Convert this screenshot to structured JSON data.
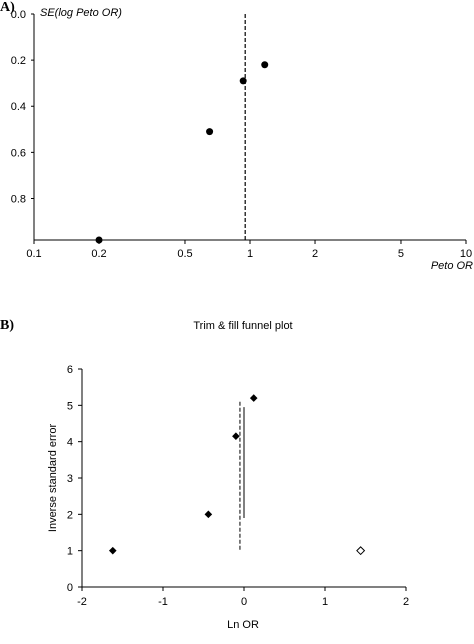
{
  "panels": {
    "a_label": "A)",
    "b_label": "B)"
  },
  "chart_data": [
    {
      "type": "scatter",
      "title": "",
      "xlabel": "Peto OR",
      "ylabel": "SE(log Peto OR)",
      "x_scale": "log",
      "y_inverted": true,
      "xlim": [
        0.1,
        10
      ],
      "ylim": [
        0.0,
        0.98
      ],
      "x_ticks": [
        0.1,
        0.2,
        0.5,
        1,
        2,
        5,
        10
      ],
      "x_tick_labels": [
        "0.1",
        "0.2",
        "0.5",
        "1",
        "2",
        "5",
        "10"
      ],
      "y_ticks": [
        0.0,
        0.2,
        0.4,
        0.6,
        0.8
      ],
      "y_tick_labels": [
        "0.0",
        "0.2",
        "0.4",
        "0.6",
        "0.8"
      ],
      "reference_line_x": 0.95,
      "points": [
        {
          "x": 1.17,
          "y": 0.22
        },
        {
          "x": 0.93,
          "y": 0.29
        },
        {
          "x": 0.65,
          "y": 0.51
        },
        {
          "x": 0.2,
          "y": 0.98
        }
      ],
      "grid": false
    },
    {
      "type": "scatter",
      "title": "Trim & fill funnel plot",
      "xlabel": "Ln OR",
      "ylabel": "Inverse standard error",
      "xlim": [
        -2,
        2
      ],
      "ylim": [
        0,
        6
      ],
      "x_ticks": [
        -2,
        -1,
        0,
        1,
        2
      ],
      "x_tick_labels": [
        "-2",
        "-1",
        "0",
        "1",
        "2"
      ],
      "y_ticks": [
        0,
        1,
        2,
        3,
        4,
        5,
        6
      ],
      "y_tick_labels": [
        "0",
        "1",
        "2",
        "3",
        "4",
        "5",
        "6"
      ],
      "series": [
        {
          "marker": "filled-diamond",
          "points": [
            {
              "x": 0.12,
              "y": 5.2
            },
            {
              "x": -0.1,
              "y": 4.15
            },
            {
              "x": -0.44,
              "y": 2.0
            },
            {
              "x": -1.62,
              "y": 1.0
            }
          ]
        },
        {
          "marker": "open-diamond",
          "points": [
            {
              "x": 1.44,
              "y": 1.0
            }
          ]
        }
      ],
      "reference_lines": [
        {
          "style": "dashed",
          "x": -0.05,
          "y_range": [
            1.0,
            5.1
          ]
        },
        {
          "style": "solid",
          "x": 0.0,
          "y_range": [
            1.9,
            4.95
          ]
        }
      ],
      "grid": false
    }
  ]
}
